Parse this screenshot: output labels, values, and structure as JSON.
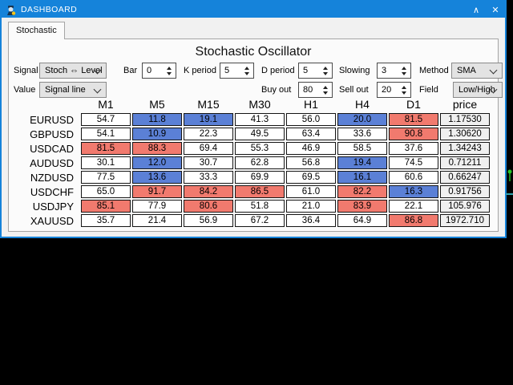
{
  "window": {
    "title": "DASHBOARD",
    "minimize_glyph": "∧",
    "close_glyph": "✕"
  },
  "tab": {
    "label": "Stochastic"
  },
  "panel": {
    "title": "Stochastic Oscillator"
  },
  "controls": {
    "row1": [
      {
        "name": "signal",
        "label": "Signal",
        "type": "select",
        "value": "Stoch ⇔ Level"
      },
      {
        "name": "bar",
        "label": "Bar",
        "type": "spin",
        "value": "0"
      },
      {
        "name": "k-period",
        "label": "K period",
        "type": "spin",
        "value": "5"
      },
      {
        "name": "d-period",
        "label": "D period",
        "type": "spin",
        "value": "5"
      },
      {
        "name": "slowing",
        "label": "Slowing",
        "type": "spin",
        "value": "3"
      },
      {
        "name": "method",
        "label": "Method",
        "type": "select",
        "value": "SMA"
      }
    ],
    "row2": [
      {
        "name": "value",
        "label": "Value",
        "type": "select",
        "value": "Signal line"
      },
      {
        "name": "buy-out",
        "label": "Buy out",
        "type": "spin",
        "value": "80"
      },
      {
        "name": "sell-out",
        "label": "Sell out",
        "type": "spin",
        "value": "20"
      },
      {
        "name": "field",
        "label": "Field",
        "type": "select",
        "value": "Low/High"
      }
    ]
  },
  "table": {
    "columns": [
      "M1",
      "M5",
      "M15",
      "M30",
      "H1",
      "H4",
      "D1",
      "price"
    ],
    "rows": [
      {
        "symbol": "EURUSD",
        "values": [
          {
            "v": "54.7",
            "c": ""
          },
          {
            "v": "11.8",
            "c": "blue"
          },
          {
            "v": "19.1",
            "c": "blue"
          },
          {
            "v": "41.3",
            "c": ""
          },
          {
            "v": "56.0",
            "c": ""
          },
          {
            "v": "20.0",
            "c": "blue"
          },
          {
            "v": "81.5",
            "c": "red"
          }
        ],
        "price": "1.17530"
      },
      {
        "symbol": "GBPUSD",
        "values": [
          {
            "v": "54.1",
            "c": ""
          },
          {
            "v": "10.9",
            "c": "blue"
          },
          {
            "v": "22.3",
            "c": ""
          },
          {
            "v": "49.5",
            "c": ""
          },
          {
            "v": "63.4",
            "c": ""
          },
          {
            "v": "33.6",
            "c": ""
          },
          {
            "v": "90.8",
            "c": "red"
          }
        ],
        "price": "1.30620"
      },
      {
        "symbol": "USDCAD",
        "values": [
          {
            "v": "81.5",
            "c": "red"
          },
          {
            "v": "88.3",
            "c": "red"
          },
          {
            "v": "69.4",
            "c": ""
          },
          {
            "v": "55.3",
            "c": ""
          },
          {
            "v": "46.9",
            "c": ""
          },
          {
            "v": "58.5",
            "c": ""
          },
          {
            "v": "37.6",
            "c": ""
          }
        ],
        "price": "1.34243"
      },
      {
        "symbol": "AUDUSD",
        "values": [
          {
            "v": "30.1",
            "c": ""
          },
          {
            "v": "12.0",
            "c": "blue"
          },
          {
            "v": "30.7",
            "c": ""
          },
          {
            "v": "62.8",
            "c": ""
          },
          {
            "v": "56.8",
            "c": ""
          },
          {
            "v": "19.4",
            "c": "blue"
          },
          {
            "v": "74.5",
            "c": ""
          }
        ],
        "price": "0.71211"
      },
      {
        "symbol": "NZDUSD",
        "values": [
          {
            "v": "77.5",
            "c": ""
          },
          {
            "v": "13.6",
            "c": "blue"
          },
          {
            "v": "33.3",
            "c": ""
          },
          {
            "v": "69.9",
            "c": ""
          },
          {
            "v": "69.5",
            "c": ""
          },
          {
            "v": "16.1",
            "c": "blue"
          },
          {
            "v": "60.6",
            "c": ""
          }
        ],
        "price": "0.66247"
      },
      {
        "symbol": "USDCHF",
        "values": [
          {
            "v": "65.0",
            "c": ""
          },
          {
            "v": "91.7",
            "c": "red"
          },
          {
            "v": "84.2",
            "c": "red"
          },
          {
            "v": "86.5",
            "c": "red"
          },
          {
            "v": "61.0",
            "c": ""
          },
          {
            "v": "82.2",
            "c": "red"
          },
          {
            "v": "16.3",
            "c": "blue"
          }
        ],
        "price": "0.91756"
      },
      {
        "symbol": "USDJPY",
        "values": [
          {
            "v": "85.1",
            "c": "red"
          },
          {
            "v": "77.9",
            "c": ""
          },
          {
            "v": "80.6",
            "c": "red"
          },
          {
            "v": "51.8",
            "c": ""
          },
          {
            "v": "21.0",
            "c": ""
          },
          {
            "v": "83.9",
            "c": "red"
          },
          {
            "v": "22.1",
            "c": ""
          }
        ],
        "price": "105.976"
      },
      {
        "symbol": "XAUUSD",
        "values": [
          {
            "v": "35.7",
            "c": ""
          },
          {
            "v": "21.4",
            "c": ""
          },
          {
            "v": "56.9",
            "c": ""
          },
          {
            "v": "67.2",
            "c": ""
          },
          {
            "v": "36.4",
            "c": ""
          },
          {
            "v": "64.9",
            "c": ""
          },
          {
            "v": "86.8",
            "c": "red"
          }
        ],
        "price": "1972.710"
      }
    ]
  },
  "colors": {
    "titlebar": "#1583da",
    "cell_blue": "#5b80d6",
    "cell_red": "#f17a6e",
    "price_bg": "#f0f0f0",
    "chart_green": "#25c525",
    "chart_teal": "#2fa3ad"
  }
}
